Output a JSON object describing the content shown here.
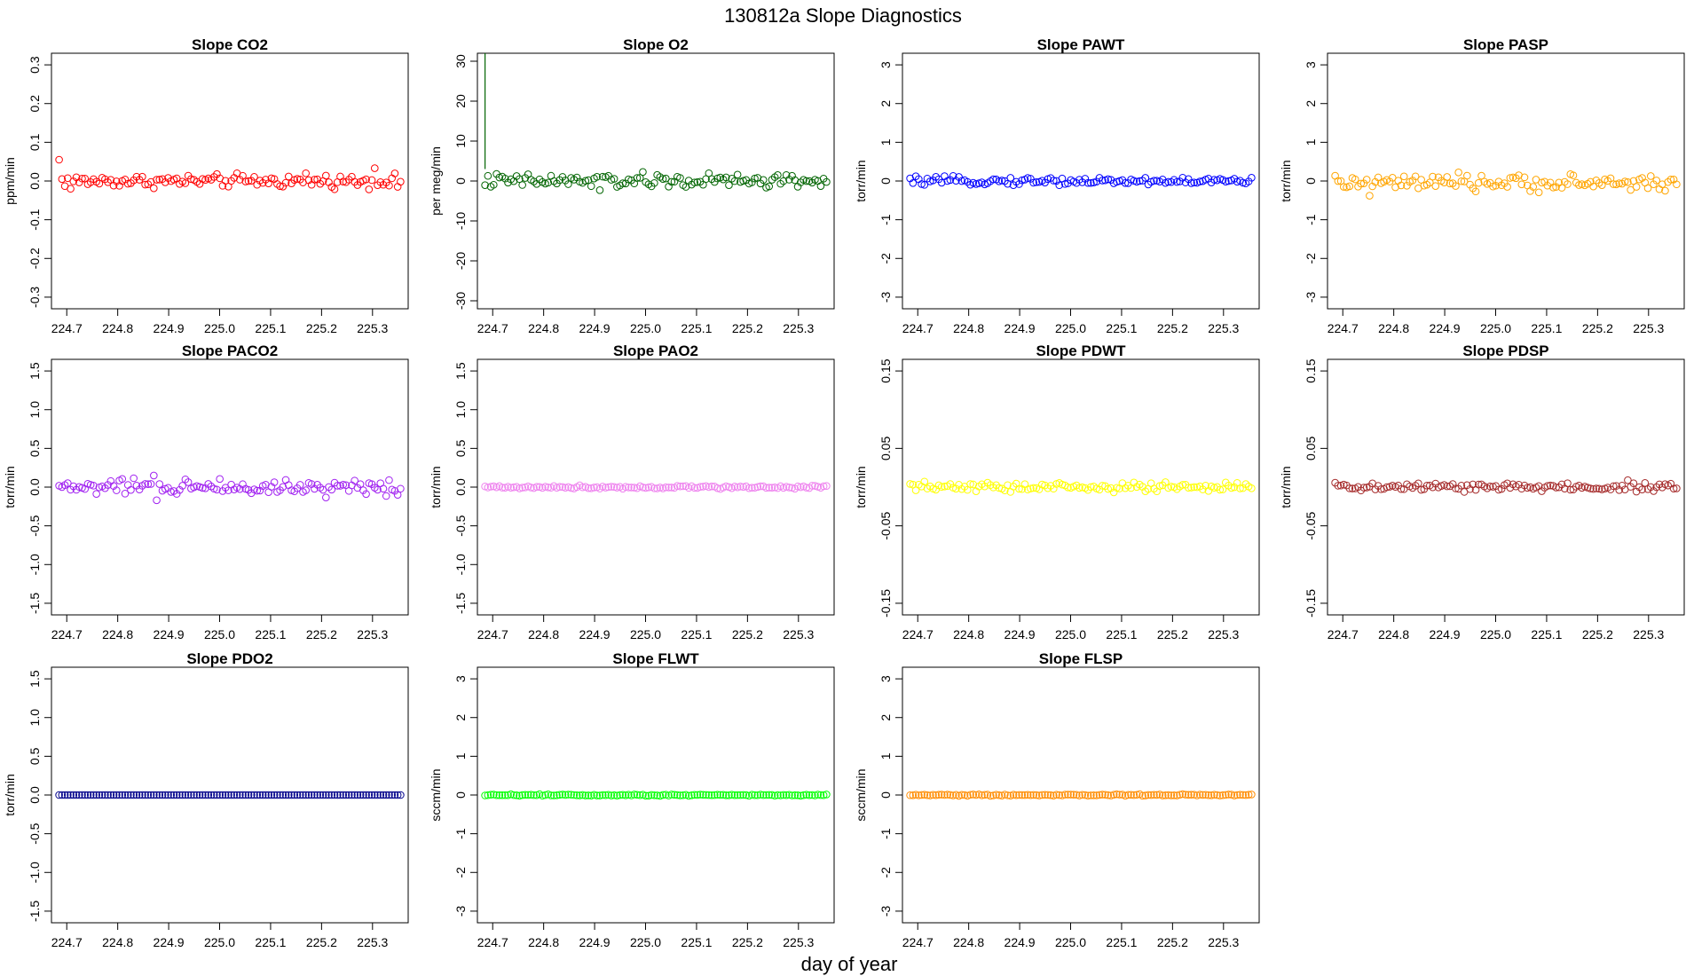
{
  "figure": {
    "title": "130812a   Slope Diagnostics",
    "xlabel": "day of year"
  },
  "chart_data": [
    {
      "type": "scatter",
      "title": "Slope CO2",
      "ylabel": "ppm/min",
      "color": "#ff0000",
      "xlim": [
        224.67,
        225.37
      ],
      "ylim": [
        -0.33,
        0.33
      ],
      "yticks": [
        "-0.3",
        "-0.2",
        "-0.1",
        "0.0",
        "0.1",
        "0.2",
        "0.3"
      ],
      "xticks": [
        "224.7",
        "224.8",
        "224.9",
        "225.0",
        "225.1",
        "225.2",
        "225.3"
      ],
      "x_range": [
        224.685,
        225.355
      ],
      "n": 120,
      "base": 0.0,
      "noise": 0.008,
      "extras": [
        [
          0,
          0.055
        ],
        [
          1,
          0.005
        ],
        [
          4,
          -0.02
        ],
        [
          62,
          0.02
        ],
        [
          86,
          0.02
        ],
        [
          110,
          0.033
        ],
        [
          118,
          -0.015
        ]
      ]
    },
    {
      "type": "scatter",
      "title": "Slope O2",
      "ylabel": "per meg/min",
      "color": "#006400",
      "xlim": [
        224.67,
        225.37
      ],
      "ylim": [
        -32,
        32
      ],
      "yticks": [
        "-30",
        "-20",
        "-10",
        "0",
        "10",
        "20",
        "30"
      ],
      "xticks": [
        "224.7",
        "224.8",
        "224.9",
        "225.0",
        "225.1",
        "225.2",
        "225.3"
      ],
      "x_range": [
        224.685,
        225.355
      ],
      "n": 120,
      "base": 0.0,
      "noise": 0.9,
      "extras": [
        [
          40,
          -2.3
        ],
        [
          105,
          1.5
        ]
      ],
      "spike": {
        "x": 224.685,
        "y_top": 32,
        "y_bottom": 3
      }
    },
    {
      "type": "scatter",
      "title": "Slope PAWT",
      "ylabel": "torr/min",
      "color": "#0000ff",
      "xlim": [
        224.67,
        225.37
      ],
      "ylim": [
        -3.3,
        3.3
      ],
      "yticks": [
        "-3",
        "-2",
        "-1",
        "0",
        "1",
        "2",
        "3"
      ],
      "xticks": [
        "224.7",
        "224.8",
        "224.9",
        "225.0",
        "225.1",
        "225.2",
        "225.3"
      ],
      "x_range": [
        224.685,
        225.355
      ],
      "n": 120,
      "base": 0.0,
      "noise": 0.05,
      "extras": [
        [
          5,
          -0.1
        ]
      ]
    },
    {
      "type": "scatter",
      "title": "Slope PASP",
      "ylabel": "torr/min",
      "color": "#ffa500",
      "xlim": [
        224.67,
        225.37
      ],
      "ylim": [
        -3.3,
        3.3
      ],
      "yticks": [
        "-3",
        "-2",
        "-1",
        "0",
        "1",
        "2",
        "3"
      ],
      "xticks": [
        "224.7",
        "224.8",
        "224.9",
        "225.0",
        "225.1",
        "225.2",
        "225.3"
      ],
      "x_range": [
        224.685,
        225.355
      ],
      "n": 120,
      "base": -0.05,
      "noise": 0.1,
      "extras": [
        [
          12,
          -0.38
        ],
        [
          28,
          0.12
        ]
      ]
    },
    {
      "type": "scatter",
      "title": "Slope PACO2",
      "ylabel": "torr/min",
      "color": "#a020f0",
      "xlim": [
        224.67,
        225.37
      ],
      "ylim": [
        -1.65,
        1.65
      ],
      "yticks": [
        "-1.5",
        "-1.0",
        "-0.5",
        "0.0",
        "0.5",
        "1.0",
        "1.5"
      ],
      "xticks": [
        "224.7",
        "224.8",
        "224.9",
        "225.0",
        "225.1",
        "225.2",
        "225.3"
      ],
      "x_range": [
        224.685,
        225.355
      ],
      "n": 120,
      "base": 0.0,
      "noise": 0.05,
      "extras": [
        [
          33,
          0.15
        ],
        [
          34,
          -0.17
        ],
        [
          44,
          0.1
        ]
      ]
    },
    {
      "type": "scatter",
      "title": "Slope PAO2",
      "ylabel": "torr/min",
      "color": "#ee82ee",
      "xlim": [
        224.67,
        225.37
      ],
      "ylim": [
        -1.65,
        1.65
      ],
      "yticks": [
        "-1.5",
        "-1.0",
        "-0.5",
        "0.0",
        "0.5",
        "1.0",
        "1.5"
      ],
      "xticks": [
        "224.7",
        "224.8",
        "224.9",
        "225.0",
        "225.1",
        "225.2",
        "225.3"
      ],
      "x_range": [
        224.685,
        225.355
      ],
      "n": 120,
      "base": 0.0,
      "noise": 0.01,
      "extras": []
    },
    {
      "type": "scatter",
      "title": "Slope PDWT",
      "ylabel": "torr/min",
      "color": "#ffff00",
      "xlim": [
        224.67,
        225.37
      ],
      "ylim": [
        -0.165,
        0.165
      ],
      "yticks": [
        "-0.15",
        "-0.05",
        "0.05",
        "0.15"
      ],
      "xticks": [
        "224.7",
        "224.8",
        "224.9",
        "225.0",
        "225.1",
        "225.2",
        "225.3"
      ],
      "x_range": [
        224.685,
        225.355
      ],
      "n": 120,
      "base": 0.0,
      "noise": 0.003,
      "extras": []
    },
    {
      "type": "scatter",
      "title": "Slope PDSP",
      "ylabel": "torr/min",
      "color": "#a52a2a",
      "xlim": [
        224.67,
        225.37
      ],
      "ylim": [
        -0.165,
        0.165
      ],
      "yticks": [
        "-0.15",
        "-0.05",
        "0.05",
        "0.15"
      ],
      "xticks": [
        "224.7",
        "224.8",
        "224.9",
        "225.0",
        "225.1",
        "225.2",
        "225.3"
      ],
      "x_range": [
        224.685,
        225.355
      ],
      "n": 120,
      "base": 0.0,
      "noise": 0.003,
      "extras": [
        [
          102,
          0.009
        ]
      ]
    },
    {
      "type": "scatter",
      "title": "Slope PDO2",
      "ylabel": "torr/min",
      "color": "#00008b",
      "xlim": [
        224.67,
        225.37
      ],
      "ylim": [
        -1.65,
        1.65
      ],
      "yticks": [
        "-1.5",
        "-1.0",
        "-0.5",
        "0.0",
        "0.5",
        "1.0",
        "1.5"
      ],
      "xticks": [
        "224.7",
        "224.8",
        "224.9",
        "225.0",
        "225.1",
        "225.2",
        "225.3"
      ],
      "x_range": [
        224.685,
        225.355
      ],
      "n": 120,
      "base": 0.0,
      "noise": 0.0,
      "extras": []
    },
    {
      "type": "scatter",
      "title": "Slope FLWT",
      "ylabel": "sccm/min",
      "color": "#00ff00",
      "xlim": [
        224.67,
        225.37
      ],
      "ylim": [
        -3.3,
        3.3
      ],
      "yticks": [
        "-3",
        "-2",
        "-1",
        "0",
        "1",
        "2",
        "3"
      ],
      "xticks": [
        "224.7",
        "224.8",
        "224.9",
        "225.0",
        "225.1",
        "225.2",
        "225.3"
      ],
      "x_range": [
        224.685,
        225.355
      ],
      "n": 120,
      "base": 0.0,
      "noise": 0.01,
      "extras": []
    },
    {
      "type": "scatter",
      "title": "Slope FLSP",
      "ylabel": "sccm/min",
      "color": "#ff8c00",
      "xlim": [
        224.67,
        225.37
      ],
      "ylim": [
        -3.3,
        3.3
      ],
      "yticks": [
        "-3",
        "-2",
        "-1",
        "0",
        "1",
        "2",
        "3"
      ],
      "xticks": [
        "224.7",
        "224.8",
        "224.9",
        "225.0",
        "225.1",
        "225.2",
        "225.3"
      ],
      "x_range": [
        224.685,
        225.355
      ],
      "n": 120,
      "base": 0.0,
      "noise": 0.01,
      "extras": []
    }
  ]
}
